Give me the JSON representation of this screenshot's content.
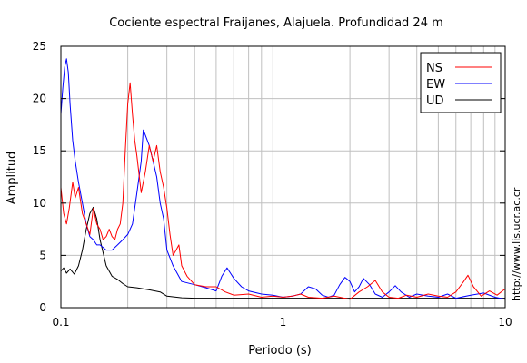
{
  "chart_data": {
    "type": "line",
    "title": "Cociente espectral Fraijanes, Alajuela. Profundidad 24 m",
    "xlabel": "Periodo (s)",
    "ylabel": "Amplitud",
    "x_scale": "log",
    "xlim": [
      0.1,
      10
    ],
    "ylim": [
      0,
      25
    ],
    "x_ticks": [
      {
        "value": 0.1,
        "label": "0.1"
      },
      {
        "value": 1,
        "label": "1"
      },
      {
        "value": 10,
        "label": "10"
      }
    ],
    "y_ticks": [
      {
        "value": 0,
        "label": "0"
      },
      {
        "value": 5,
        "label": "5"
      },
      {
        "value": 10,
        "label": "10"
      },
      {
        "value": 15,
        "label": "15"
      },
      {
        "value": 20,
        "label": "20"
      },
      {
        "value": 25,
        "label": "25"
      }
    ],
    "grid": true,
    "legend_position": "top-right",
    "credit": "http://www.lis.ucr.ac.cr",
    "series": [
      {
        "name": "NS",
        "color": "#ff0000",
        "points": [
          [
            0.1,
            11.5
          ],
          [
            0.103,
            9.0
          ],
          [
            0.106,
            8.0
          ],
          [
            0.109,
            9.5
          ],
          [
            0.113,
            12.0
          ],
          [
            0.116,
            10.5
          ],
          [
            0.12,
            11.5
          ],
          [
            0.125,
            9.0
          ],
          [
            0.13,
            8.0
          ],
          [
            0.135,
            7.0
          ],
          [
            0.14,
            9.5
          ],
          [
            0.145,
            8.0
          ],
          [
            0.15,
            7.5
          ],
          [
            0.155,
            6.5
          ],
          [
            0.16,
            6.8
          ],
          [
            0.165,
            7.5
          ],
          [
            0.17,
            6.8
          ],
          [
            0.175,
            6.5
          ],
          [
            0.18,
            7.5
          ],
          [
            0.185,
            8.0
          ],
          [
            0.19,
            10.0
          ],
          [
            0.195,
            15.0
          ],
          [
            0.2,
            19.5
          ],
          [
            0.205,
            21.5
          ],
          [
            0.21,
            18.5
          ],
          [
            0.215,
            16.0
          ],
          [
            0.22,
            14.5
          ],
          [
            0.23,
            11.0
          ],
          [
            0.24,
            13.0
          ],
          [
            0.25,
            15.5
          ],
          [
            0.26,
            14.0
          ],
          [
            0.27,
            15.5
          ],
          [
            0.28,
            13.0
          ],
          [
            0.29,
            11.5
          ],
          [
            0.3,
            9.5
          ],
          [
            0.31,
            7.0
          ],
          [
            0.32,
            5.0
          ],
          [
            0.33,
            5.5
          ],
          [
            0.34,
            6.0
          ],
          [
            0.35,
            4.0
          ],
          [
            0.37,
            3.0
          ],
          [
            0.4,
            2.2
          ],
          [
            0.45,
            2.0
          ],
          [
            0.5,
            2.0
          ],
          [
            0.55,
            1.5
          ],
          [
            0.6,
            1.2
          ],
          [
            0.7,
            1.3
          ],
          [
            0.8,
            1.0
          ],
          [
            0.9,
            1.1
          ],
          [
            1.0,
            1.0
          ],
          [
            1.1,
            1.1
          ],
          [
            1.2,
            1.3
          ],
          [
            1.3,
            1.0
          ],
          [
            1.5,
            0.9
          ],
          [
            1.7,
            1.1
          ],
          [
            2.0,
            0.8
          ],
          [
            2.2,
            1.5
          ],
          [
            2.4,
            2.0
          ],
          [
            2.6,
            2.6
          ],
          [
            2.8,
            1.5
          ],
          [
            3.0,
            1.0
          ],
          [
            3.3,
            0.9
          ],
          [
            3.6,
            1.2
          ],
          [
            4.0,
            1.0
          ],
          [
            4.5,
            1.3
          ],
          [
            5.0,
            1.1
          ],
          [
            5.5,
            1.0
          ],
          [
            6.0,
            1.5
          ],
          [
            6.5,
            2.5
          ],
          [
            6.8,
            3.1
          ],
          [
            7.2,
            2.0
          ],
          [
            7.8,
            1.1
          ],
          [
            8.5,
            1.6
          ],
          [
            9.2,
            1.2
          ],
          [
            10.0,
            1.8
          ]
        ]
      },
      {
        "name": "EW",
        "color": "#0000ff",
        "points": [
          [
            0.1,
            18.5
          ],
          [
            0.102,
            21.0
          ],
          [
            0.104,
            23.0
          ],
          [
            0.106,
            23.8
          ],
          [
            0.108,
            22.5
          ],
          [
            0.11,
            19.5
          ],
          [
            0.113,
            16.0
          ],
          [
            0.116,
            14.0
          ],
          [
            0.12,
            12.0
          ],
          [
            0.125,
            10.0
          ],
          [
            0.13,
            8.0
          ],
          [
            0.135,
            6.8
          ],
          [
            0.14,
            6.5
          ],
          [
            0.145,
            6.0
          ],
          [
            0.15,
            6.0
          ],
          [
            0.16,
            5.5
          ],
          [
            0.17,
            5.5
          ],
          [
            0.18,
            6.0
          ],
          [
            0.19,
            6.5
          ],
          [
            0.2,
            7.0
          ],
          [
            0.21,
            8.0
          ],
          [
            0.22,
            11.0
          ],
          [
            0.23,
            14.0
          ],
          [
            0.235,
            17.0
          ],
          [
            0.24,
            16.5
          ],
          [
            0.25,
            15.5
          ],
          [
            0.26,
            14.0
          ],
          [
            0.27,
            12.5
          ],
          [
            0.28,
            10.0
          ],
          [
            0.29,
            8.5
          ],
          [
            0.3,
            5.5
          ],
          [
            0.32,
            4.0
          ],
          [
            0.35,
            2.5
          ],
          [
            0.4,
            2.2
          ],
          [
            0.45,
            1.9
          ],
          [
            0.5,
            1.6
          ],
          [
            0.53,
            3.0
          ],
          [
            0.56,
            3.8
          ],
          [
            0.6,
            2.8
          ],
          [
            0.65,
            2.0
          ],
          [
            0.7,
            1.6
          ],
          [
            0.8,
            1.3
          ],
          [
            0.9,
            1.2
          ],
          [
            1.0,
            1.0
          ],
          [
            1.1,
            1.1
          ],
          [
            1.2,
            1.3
          ],
          [
            1.3,
            2.0
          ],
          [
            1.4,
            1.8
          ],
          [
            1.5,
            1.2
          ],
          [
            1.6,
            1.0
          ],
          [
            1.7,
            1.2
          ],
          [
            1.8,
            2.2
          ],
          [
            1.9,
            2.9
          ],
          [
            2.0,
            2.5
          ],
          [
            2.1,
            1.5
          ],
          [
            2.2,
            2.0
          ],
          [
            2.3,
            2.8
          ],
          [
            2.45,
            2.2
          ],
          [
            2.6,
            1.3
          ],
          [
            2.8,
            1.0
          ],
          [
            3.0,
            1.5
          ],
          [
            3.2,
            2.1
          ],
          [
            3.4,
            1.5
          ],
          [
            3.7,
            1.0
          ],
          [
            4.0,
            1.3
          ],
          [
            4.5,
            1.1
          ],
          [
            5.0,
            1.0
          ],
          [
            5.5,
            1.3
          ],
          [
            6.0,
            0.9
          ],
          [
            7.0,
            1.2
          ],
          [
            8.0,
            1.4
          ],
          [
            9.0,
            1.0
          ],
          [
            10.0,
            0.8
          ]
        ]
      },
      {
        "name": "UD",
        "color": "#000000",
        "points": [
          [
            0.1,
            3.5
          ],
          [
            0.103,
            3.8
          ],
          [
            0.106,
            3.3
          ],
          [
            0.11,
            3.7
          ],
          [
            0.115,
            3.2
          ],
          [
            0.12,
            4.0
          ],
          [
            0.125,
            5.5
          ],
          [
            0.13,
            7.5
          ],
          [
            0.135,
            9.0
          ],
          [
            0.14,
            9.6
          ],
          [
            0.145,
            8.5
          ],
          [
            0.15,
            6.5
          ],
          [
            0.16,
            4.0
          ],
          [
            0.17,
            3.0
          ],
          [
            0.18,
            2.7
          ],
          [
            0.19,
            2.3
          ],
          [
            0.2,
            2.0
          ],
          [
            0.22,
            1.9
          ],
          [
            0.25,
            1.7
          ],
          [
            0.28,
            1.5
          ],
          [
            0.3,
            1.1
          ],
          [
            0.35,
            0.95
          ],
          [
            0.4,
            0.9
          ],
          [
            0.5,
            0.9
          ],
          [
            0.6,
            0.9
          ],
          [
            0.8,
            0.9
          ],
          [
            1.0,
            0.9
          ],
          [
            1.5,
            0.9
          ],
          [
            2.0,
            0.9
          ],
          [
            3.0,
            0.9
          ],
          [
            5.0,
            0.9
          ],
          [
            7.0,
            0.9
          ],
          [
            10.0,
            0.9
          ]
        ]
      }
    ]
  }
}
